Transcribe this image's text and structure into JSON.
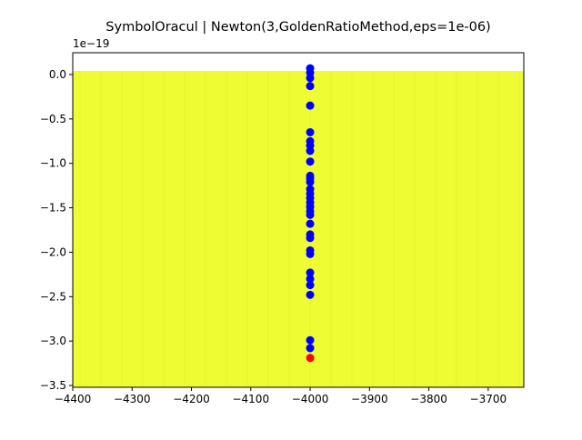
{
  "chart_data": {
    "type": "scatter",
    "title": "SymbolOracul | Newton(3,GoldenRatioMethod,eps=1e-06)",
    "y_offset_label": "1e−19",
    "xlim": [
      -4400,
      -3640
    ],
    "ylim": [
      -3.52,
      0.245
    ],
    "xticks": [
      {
        "value": -4400,
        "label": "−4400"
      },
      {
        "value": -4300,
        "label": "−4300"
      },
      {
        "value": -4200,
        "label": "−4200"
      },
      {
        "value": -4100,
        "label": "−4100"
      },
      {
        "value": -4000,
        "label": "−4000"
      },
      {
        "value": -3900,
        "label": "−3900"
      },
      {
        "value": -3800,
        "label": "−3800"
      },
      {
        "value": -3700,
        "label": "−3700"
      }
    ],
    "yticks": [
      {
        "value": 0,
        "label": "0.0"
      },
      {
        "value": -0.5,
        "label": "−0.5"
      },
      {
        "value": -1,
        "label": "−1.0"
      },
      {
        "value": -1.5,
        "label": "−1.5"
      },
      {
        "value": -2,
        "label": "−2.0"
      },
      {
        "value": -2.5,
        "label": "−2.5"
      },
      {
        "value": -3,
        "label": "−3.0"
      },
      {
        "value": -3.5,
        "label": "−3.5"
      }
    ],
    "series": [
      {
        "color": "#0000ff",
        "x": [
          -4000,
          -4000,
          -4000,
          -4000,
          -4000,
          -4000,
          -4000,
          -4000,
          -4000,
          -4000,
          -4000,
          -4000,
          -4000,
          -4000,
          -4000,
          -4000,
          -4000,
          -4000,
          -4000,
          -4000,
          -4000,
          -4000,
          -4000,
          -4000,
          -4000,
          -4000,
          -4000,
          -4000,
          -4000,
          -4000,
          -4000
        ],
        "values": [
          0.07,
          0.02,
          -0.04,
          -0.13,
          -0.35,
          -0.65,
          -0.75,
          -0.8,
          -0.86,
          -0.98,
          -1.14,
          -1.17,
          -1.21,
          -1.29,
          -1.34,
          -1.39,
          -1.44,
          -1.49,
          -1.54,
          -1.58,
          -1.68,
          -1.8,
          -1.84,
          -1.98,
          -2.02,
          -2.23,
          -2.3,
          -2.37,
          -2.48,
          -2.99,
          -3.08
        ]
      },
      {
        "color": "#ff0000",
        "x": [
          -4000
        ],
        "values": [
          -3.19
        ]
      }
    ]
  }
}
